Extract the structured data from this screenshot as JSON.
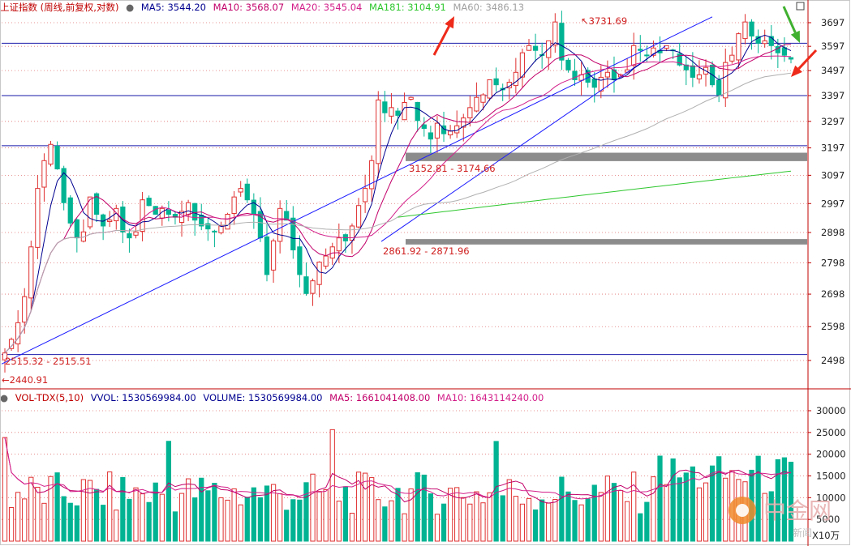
{
  "header": {
    "title": "上证指数 (周线,前复权,对数)",
    "ma5": "MA5: 3544.20",
    "ma10": "MA10: 3568.07",
    "ma20": "MA20: 3545.04",
    "ma181": "MA181: 3104.91",
    "ma60": "MA60: 3486.13"
  },
  "volume_header": {
    "title": "VOL-TDX(5,10)",
    "vvol": "VVOL: 1530569984.00",
    "volume": "VOLUME: 1530569984.00",
    "ma5": "MA5: 1661041408.00",
    "ma10": "MA10: 1643114240.00"
  },
  "colors": {
    "up": "#e03030",
    "down": "#00b392",
    "ma5": "#000090",
    "ma10": "#c2006a",
    "ma20": "#d31f8a",
    "ma181": "#2ec72e",
    "ma60": "#b0b0b0",
    "trendline": "#1a1aff",
    "arrow_red": "#ee2a1a",
    "arrow_green": "#40b030"
  },
  "annotations": {
    "high": "3731.69",
    "low": "2440.91",
    "zone1": "2515.32 - 2515.51",
    "zone2": "2861.92 - 2871.96",
    "zone3": "3152.81 - 3174.66"
  },
  "watermark": {
    "brand": "中金网",
    "sub": "新闻"
  },
  "chart_data": [
    {
      "type": "candlestick",
      "title": "上证指数 (周线,前复权,对数)",
      "y_scale": "log",
      "ylim": [
        2440.91,
        3731.69
      ],
      "y_ticks": [
        3697,
        3597,
        3497,
        3397,
        3297,
        3197,
        3097,
        2997,
        2898,
        2798,
        2698,
        2598,
        2498
      ],
      "horizontal_levels": [
        3610,
        3397,
        3205,
        2515.5
      ],
      "support_zones": [
        [
          3152.81,
          3174.66
        ],
        [
          2861.92,
          2871.96
        ]
      ],
      "series": [
        {
          "name": "MA5",
          "value": 3544.2
        },
        {
          "name": "MA10",
          "value": 3568.07
        },
        {
          "name": "MA20",
          "value": 3545.04
        },
        {
          "name": "MA181",
          "value": 3104.91
        },
        {
          "name": "MA60",
          "value": 3486.13
        }
      ],
      "close_path": [
        2520,
        2560,
        2610,
        2690,
        2850,
        3050,
        3150,
        3210,
        3120,
        3000,
        2930,
        2880,
        2900,
        3020,
        2960,
        2920,
        2940,
        2980,
        2900,
        2880,
        2900,
        3010,
        2990,
        2960,
        2980,
        2960,
        2950,
        2970,
        3000,
        2940,
        2920,
        2910,
        2900,
        2920,
        2960,
        3020,
        3050,
        3010,
        2960,
        2880,
        2760,
        2870,
        2980,
        2940,
        2840,
        2760,
        2700,
        2740,
        2800,
        2820,
        2850,
        2880,
        2870,
        2920,
        2990,
        3050,
        3150,
        3380,
        3330,
        3350,
        3320,
        3370,
        3390,
        3300,
        3270,
        3230,
        3290,
        3250,
        3260,
        3280,
        3310,
        3350,
        3390,
        3400,
        3460,
        3440,
        3420,
        3450,
        3490,
        3570,
        3600,
        3580,
        3560,
        3620,
        3700,
        3540,
        3500,
        3460,
        3480,
        3450,
        3430,
        3470,
        3490,
        3460,
        3480,
        3500,
        3600,
        3580,
        3560,
        3590,
        3570,
        3600,
        3580,
        3520,
        3500,
        3470,
        3480,
        3510,
        3440,
        3400,
        3530,
        3560,
        3650,
        3700,
        3640,
        3610,
        3620,
        3600,
        3570,
        3560,
        3544
      ]
    },
    {
      "type": "bar",
      "title": "VOL-TDX(5,10)",
      "unit": "X10万",
      "y_ticks": [
        30000,
        25000,
        20000,
        15000,
        10000,
        5000
      ],
      "series": [
        {
          "name": "VOLUME",
          "value": 1530569984.0
        },
        {
          "name": "MA5",
          "value": 1661041408.0
        },
        {
          "name": "MA10",
          "value": 1643114240.0
        }
      ]
    }
  ]
}
